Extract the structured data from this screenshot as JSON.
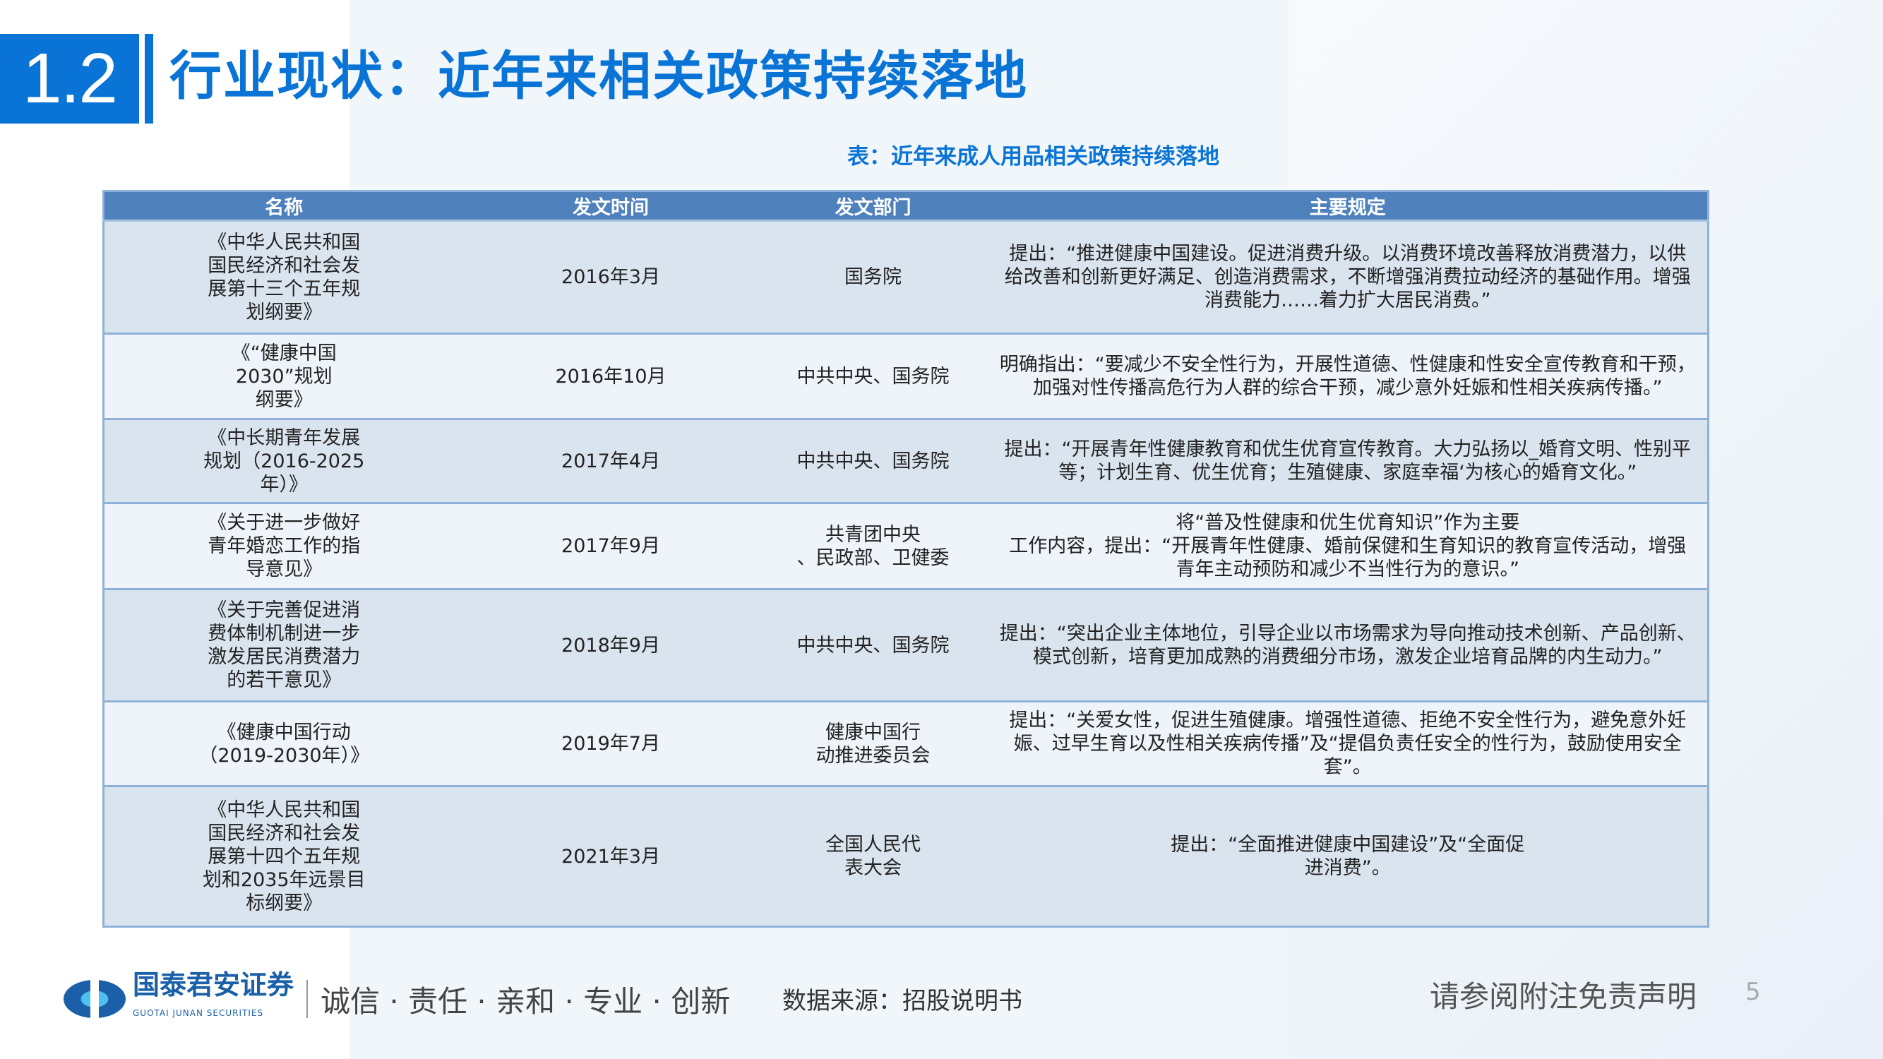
{
  "header": {
    "section_number": "1.2",
    "title": "行业现状：近年来相关政策持续落地"
  },
  "table": {
    "caption": "表：近年来成人用品相关政策持续落地",
    "columns": [
      "名称",
      "发文时间",
      "发文部门",
      "主要规定"
    ],
    "rows": [
      {
        "name": "《中华人民共和国\n国民经济和社会发\n展第十三个五年规\n划纲要》",
        "date": "2016年3月",
        "dept": "国务院",
        "rule": "提出：“推进健康中国建设。促进消费升级。以消费环境改善释放消费潜力，以供\n给改善和创新更好满足、创造消费需求，不断增强消费拉动经济的基础作用。增强\n消费能力……着力扩大居民消费。”"
      },
      {
        "name": "《“健康中国\n2030”规划\n纲要》",
        "date": "2016年10月",
        "dept": "中共中央、国务院",
        "rule": "明确指出：“要减少不安全性行为，开展性道德、性健康和性安全宣传教育和干预，\n加强对性传播高危行为人群的综合干预，减少意外妊娠和性相关疾病传播。”"
      },
      {
        "name": "《中长期青年发展\n规划（2016-2025\n年）》",
        "date": "2017年4月",
        "dept": "中共中央、国务院",
        "rule": "提出：“开展青年性健康教育和优生优育宣传教育。大力弘扬以_婚育文明、性别平\n等；计划生育、优生优育；生殖健康、家庭幸福‘为核心的婚育文化。”"
      },
      {
        "name": "《关于进一步做好\n青年婚恋工作的指\n导意见》",
        "date": "2017年9月",
        "dept": "共青团中央\n、民政部、卫健委",
        "rule": "将“普及性健康和优生优育知识”作为主要\n工作内容，提出：“开展青年性健康、婚前保健和生育知识的教育宣传活动，增强\n青年主动预防和减少不当性行为的意识。”"
      },
      {
        "name": "《关于完善促进消\n费体制机制进一步\n激发居民消费潜力\n的若干意见》",
        "date": "2018年9月",
        "dept": "中共中央、国务院",
        "rule": "提出：“突出企业主体地位，引导企业以市场需求为导向推动技术创新、产品创新、\n模式创新，培育更加成熟的消费细分市场，激发企业培育品牌的内生动力。”"
      },
      {
        "name": "《健康中国行动\n（2019-2030年）》",
        "date": "2019年7月",
        "dept": "健康中国行\n动推进委员会",
        "rule": "提出：“关爱女性，促进生殖健康。增强性道德、拒绝不安全性行为，避免意外妊\n娠、过早生育以及性相关疾病传播”及“提倡负责任安全的性行为，鼓励使用安全\n套”。"
      },
      {
        "name": "《中华人民共和国\n国民经济和社会发\n展第十四个五年规\n划和2035年远景目\n标纲要》",
        "date": "2021年3月",
        "dept": "全国人民代\n表大会",
        "rule": "提出：“全面推进健康中国建设”及“全面促\n进消费”。"
      }
    ]
  },
  "footer": {
    "company": "国泰君安证券",
    "company_en": "GUOTAI JUNAN SECURITIES",
    "slogan": "诚信 · 责任 · 亲和 · 专业 · 创新",
    "source": "数据来源：招股说明书",
    "disclaimer": "请参阅附注免责声明",
    "page": "5"
  },
  "colors": {
    "brand": "#0a74d6",
    "table_header": "#4f81bd",
    "row_odd": "#dae4ef",
    "row_even": "#eef4fa"
  }
}
